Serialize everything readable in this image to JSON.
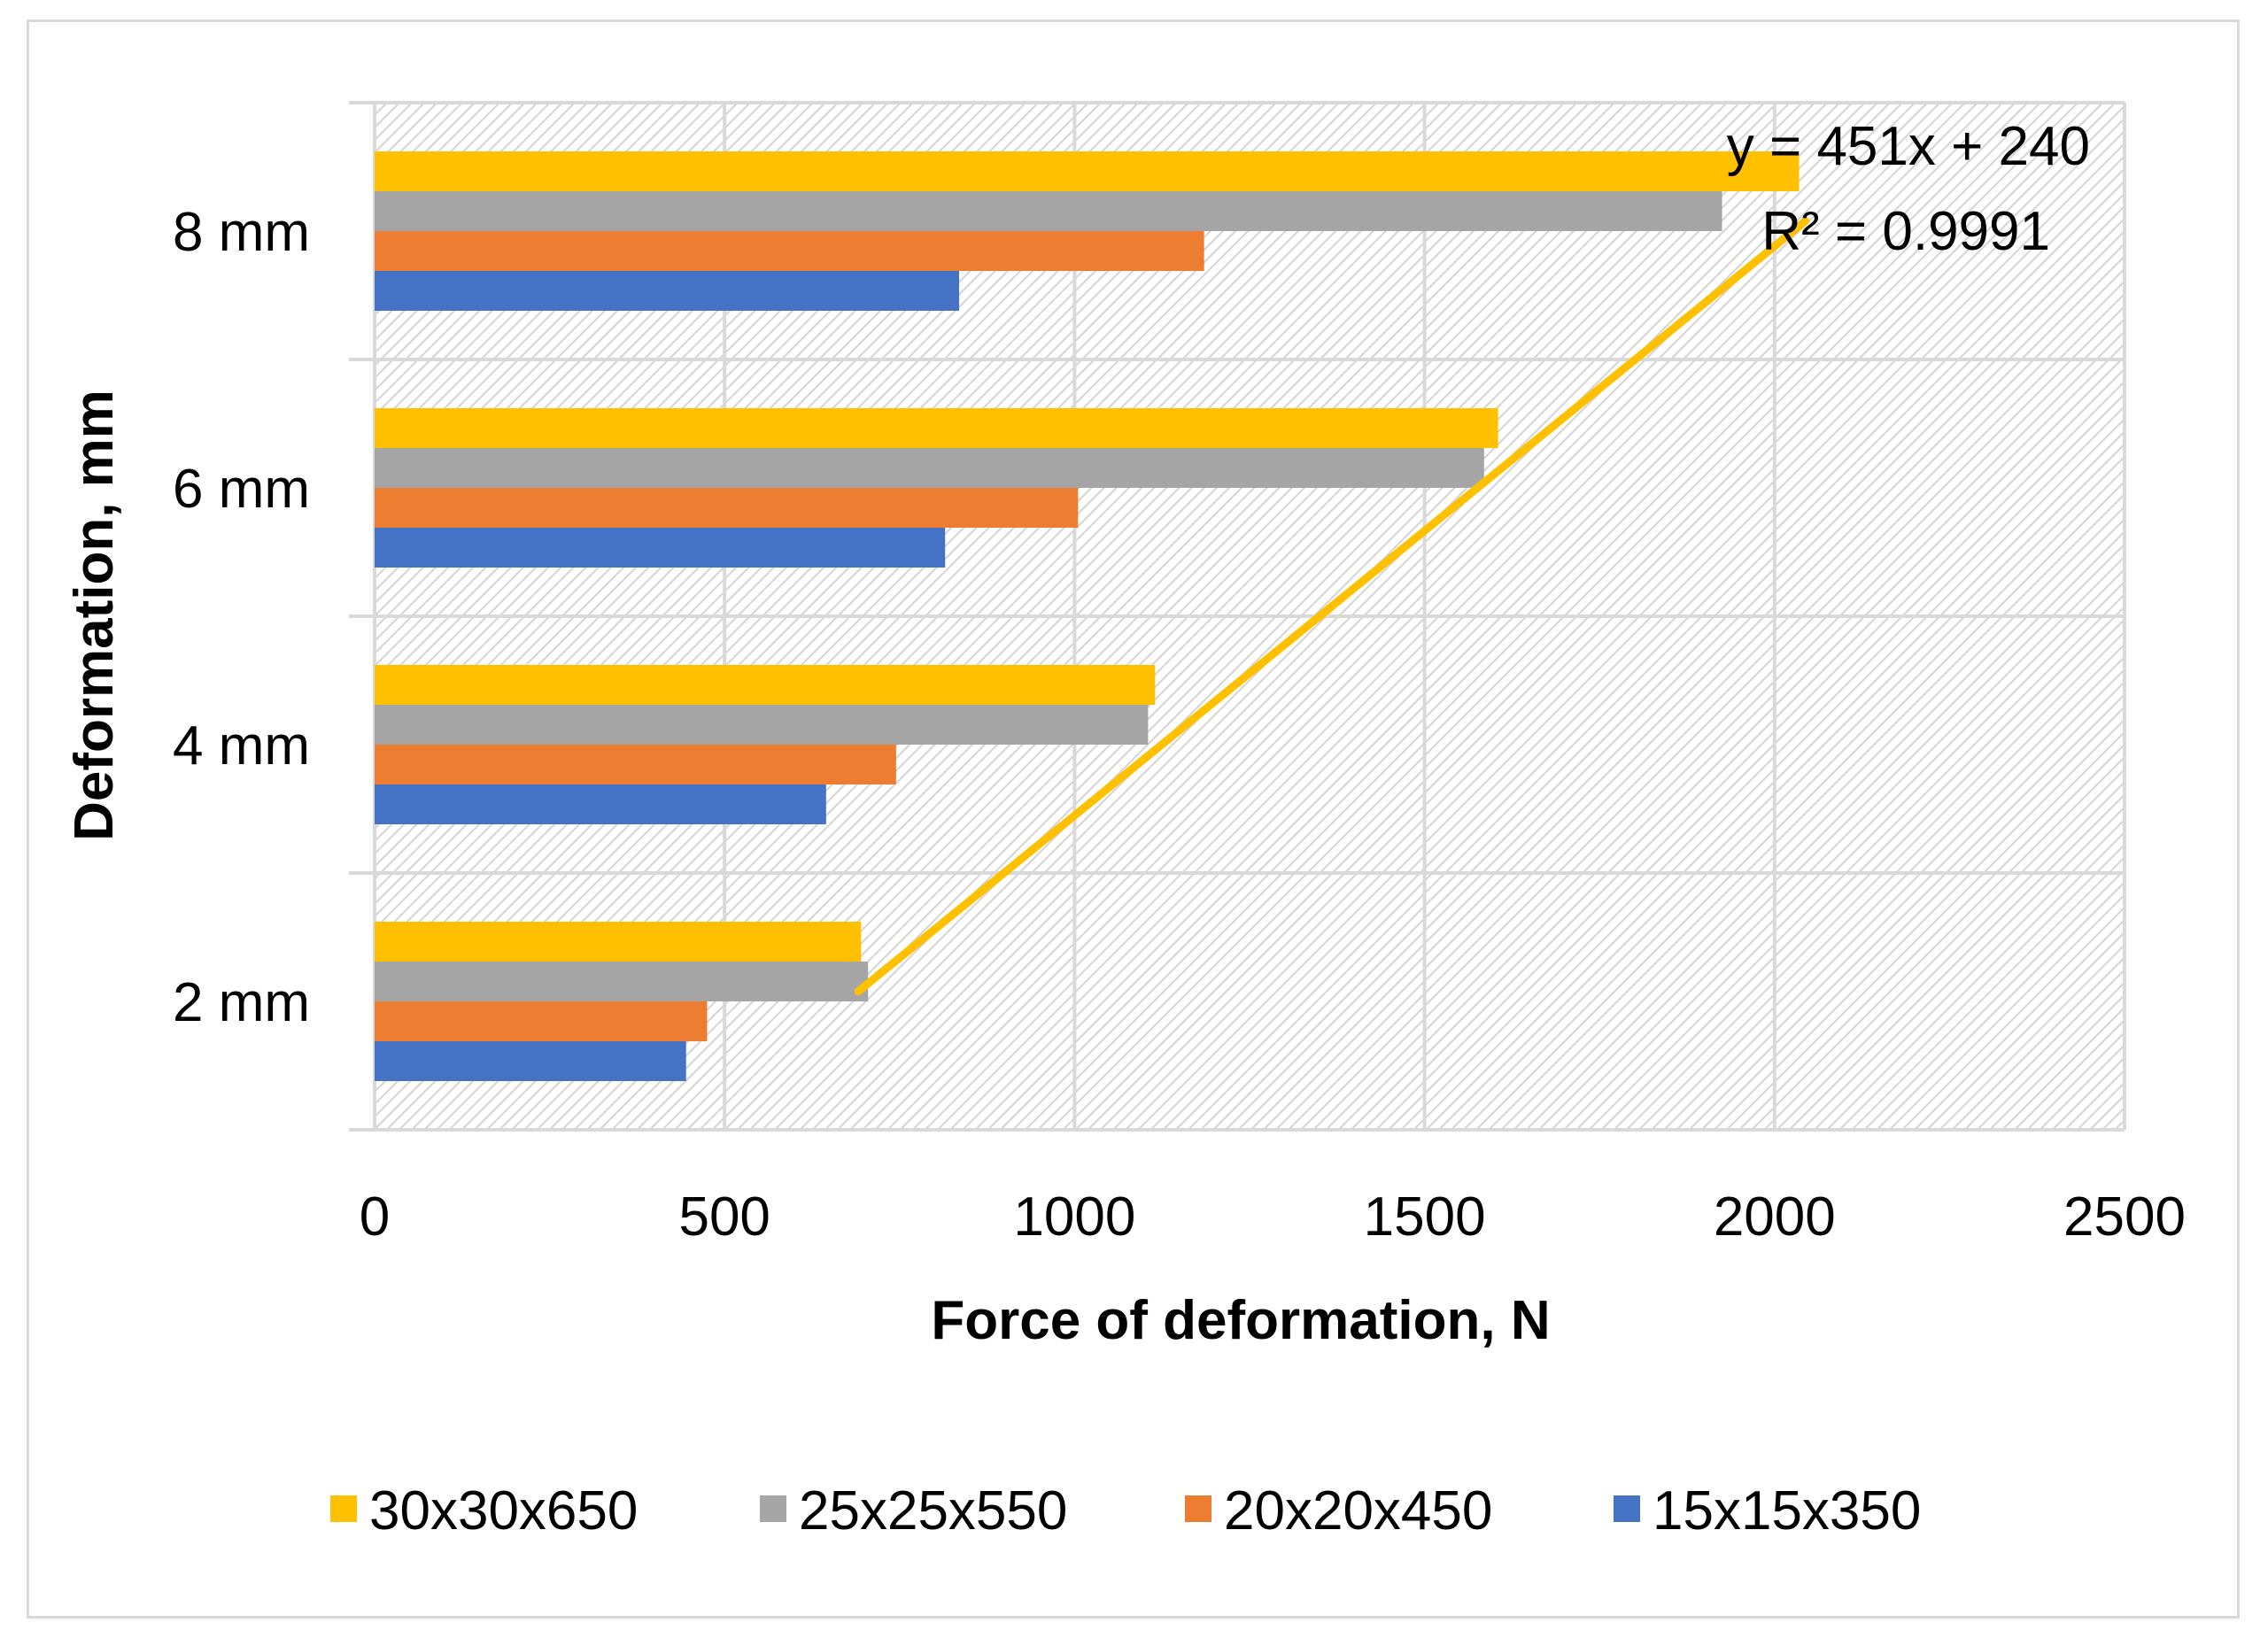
{
  "chart_data": {
    "type": "bar",
    "orientation": "horizontal",
    "categories": [
      "2 mm",
      "4 mm",
      "6 mm",
      "8 mm"
    ],
    "series": [
      {
        "name": "15x15x350",
        "color": "#4472C4",
        "values": [
          445,
          645,
          815,
          835
        ]
      },
      {
        "name": "20x20x450",
        "color": "#ED7D31",
        "values": [
          475,
          745,
          1005,
          1185
        ]
      },
      {
        "name": "25x25x550",
        "color": "#A5A5A5",
        "values": [
          705,
          1105,
          1585,
          1925
        ]
      },
      {
        "name": "30x30x650",
        "color": "#FFC000",
        "values": [
          695,
          1115,
          1605,
          2035
        ]
      }
    ],
    "trendline": {
      "series": "30x30x650",
      "equation": "y = 451x + 240",
      "r_squared": "R² = 0.9991",
      "from": {
        "category_index": 0,
        "value": 691
      },
      "to": {
        "category_index": 3,
        "value": 2044
      },
      "color": "#FFC000"
    },
    "xlabel": "Force of deformation, N",
    "ylabel": "Deformation, mm",
    "xlim": [
      0,
      2500
    ],
    "x_ticks": [
      "0",
      "500",
      "1000",
      "1500",
      "2000",
      "2500"
    ],
    "grid": true,
    "legend_position": "bottom",
    "legend_order": [
      "30x30x650",
      "25x25x550",
      "20x20x450",
      "15x15x350"
    ]
  }
}
